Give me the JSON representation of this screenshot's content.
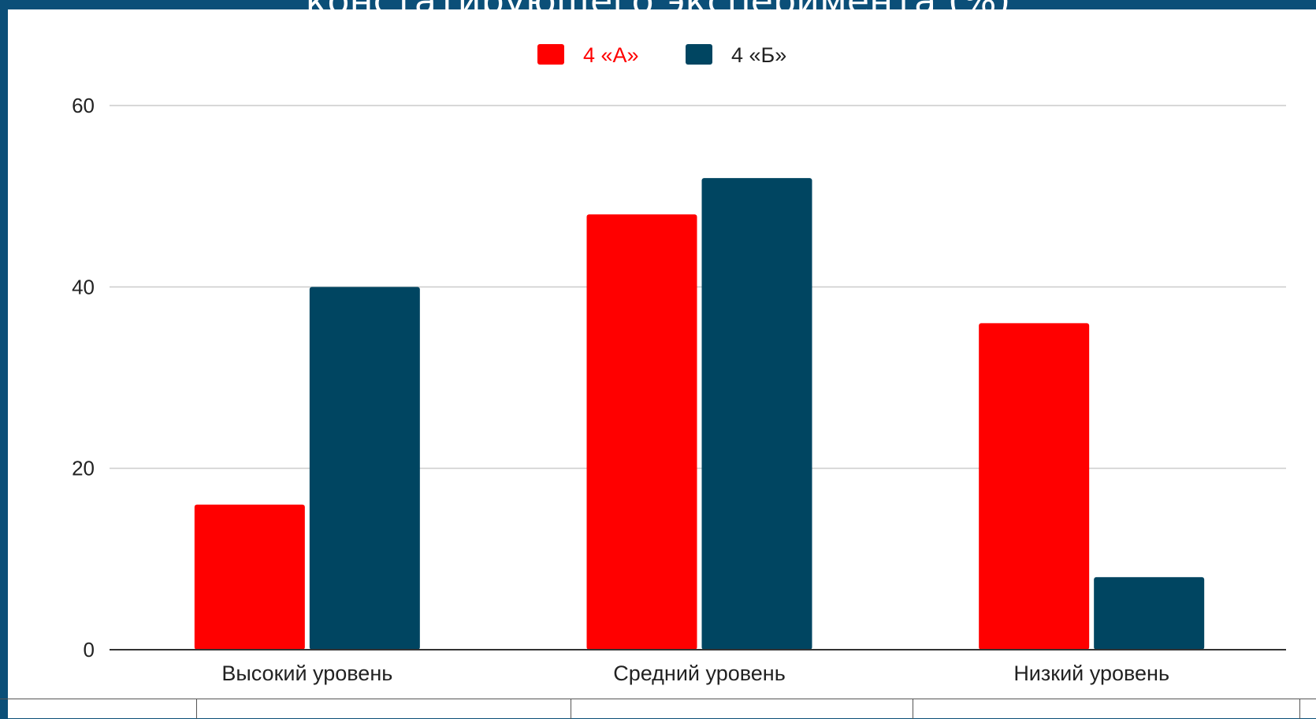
{
  "title": "констатирующего эксперимента (%)",
  "colors": {
    "series_a": "#ff0000",
    "series_b": "#004561",
    "grid": "#cccccc",
    "axis": "#333333",
    "frame": "#0b4f78"
  },
  "chart_data": {
    "type": "bar",
    "title": "констатирующего эксперимента (%)",
    "categories": [
      "Высокий уровень",
      "Средний уровень",
      "Низкий уровень"
    ],
    "series": [
      {
        "name": "4 «А»",
        "color": "#ff0000",
        "values": [
          16,
          48,
          36
        ]
      },
      {
        "name": "4 «Б»",
        "color": "#004561",
        "values": [
          40,
          52,
          8
        ]
      }
    ],
    "ylim": [
      0,
      60
    ],
    "yticks": [
      0,
      20,
      40,
      60
    ],
    "grid": true,
    "legend": "top-center"
  }
}
